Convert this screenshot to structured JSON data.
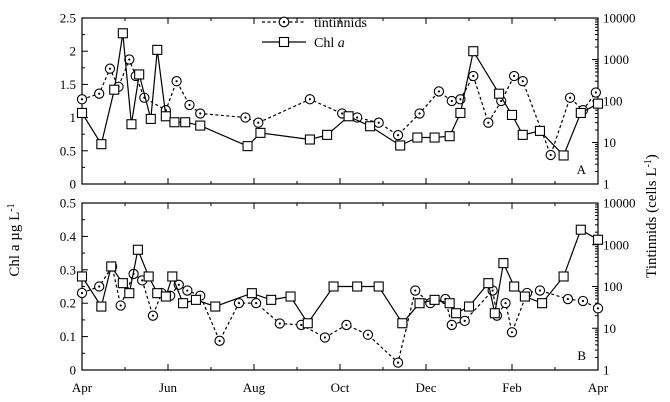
{
  "chart_data": {
    "type": "line",
    "y_left_label_main": "Chl a µg L",
    "y_left_label_sup": "-1",
    "y_right_label_main": "Tintinnids (cells L",
    "y_right_label_sup": "-1",
    "y_right_label_close": ")",
    "x_ticks": [
      {
        "label": "Apr",
        "x": 0
      },
      {
        "label": "Jun",
        "x": 2
      },
      {
        "label": "Aug",
        "x": 4
      },
      {
        "label": "Oct",
        "x": 6
      },
      {
        "label": "Dec",
        "x": 8
      },
      {
        "label": "Feb",
        "x": 10
      },
      {
        "label": "Apr",
        "x": 12
      }
    ],
    "x_range": [
      0,
      12
    ],
    "legend": {
      "tintinnids": "tintinnids",
      "chl_prefix": "Chl ",
      "chl_italic": "a"
    },
    "panels": [
      {
        "letter": "A",
        "left_range": [
          0,
          2.5
        ],
        "left_ticks": [
          "0",
          "0.5",
          "1",
          "1.5",
          "2",
          "2.5"
        ],
        "left_tick_values": [
          0,
          0.5,
          1,
          1.5,
          2,
          2.5
        ],
        "right_range_log": [
          1,
          10000
        ],
        "right_ticks": [
          "1",
          "10",
          "100",
          "1000",
          "10000"
        ],
        "right_tick_values": [
          1,
          10,
          100,
          1000,
          10000
        ],
        "chl": [
          {
            "x": 0.0,
            "y": 1.07
          },
          {
            "x": 0.45,
            "y": 0.6
          },
          {
            "x": 0.75,
            "y": 1.42
          },
          {
            "x": 0.95,
            "y": 2.27
          },
          {
            "x": 1.15,
            "y": 0.9
          },
          {
            "x": 1.33,
            "y": 1.65
          },
          {
            "x": 1.6,
            "y": 0.98
          },
          {
            "x": 1.75,
            "y": 2.02
          },
          {
            "x": 1.95,
            "y": 1.02
          },
          {
            "x": 2.15,
            "y": 0.93
          },
          {
            "x": 2.4,
            "y": 0.93
          },
          {
            "x": 2.75,
            "y": 0.88
          },
          {
            "x": 3.85,
            "y": 0.57
          },
          {
            "x": 4.15,
            "y": 0.77
          },
          {
            "x": 5.3,
            "y": 0.67
          },
          {
            "x": 5.7,
            "y": 0.74
          },
          {
            "x": 6.2,
            "y": 1.02
          },
          {
            "x": 6.7,
            "y": 0.87
          },
          {
            "x": 7.4,
            "y": 0.58
          },
          {
            "x": 7.8,
            "y": 0.7
          },
          {
            "x": 8.2,
            "y": 0.7
          },
          {
            "x": 8.55,
            "y": 0.72
          },
          {
            "x": 8.8,
            "y": 1.07
          },
          {
            "x": 9.1,
            "y": 2.0
          },
          {
            "x": 9.7,
            "y": 1.36
          },
          {
            "x": 10.0,
            "y": 1.04
          },
          {
            "x": 10.25,
            "y": 0.74
          },
          {
            "x": 10.65,
            "y": 0.8
          },
          {
            "x": 11.2,
            "y": 0.43
          },
          {
            "x": 11.6,
            "y": 1.07
          },
          {
            "x": 12.0,
            "y": 1.21
          }
        ],
        "tintinnids": [
          {
            "x": 0.0,
            "y": 110
          },
          {
            "x": 0.4,
            "y": 150
          },
          {
            "x": 0.65,
            "y": 600
          },
          {
            "x": 0.85,
            "y": 220
          },
          {
            "x": 1.1,
            "y": 1000
          },
          {
            "x": 1.25,
            "y": 400
          },
          {
            "x": 1.45,
            "y": 120
          },
          {
            "x": 1.95,
            "y": 60
          },
          {
            "x": 2.2,
            "y": 300
          },
          {
            "x": 2.5,
            "y": 80
          },
          {
            "x": 2.75,
            "y": 50
          },
          {
            "x": 3.8,
            "y": 40
          },
          {
            "x": 4.1,
            "y": 30
          },
          {
            "x": 5.3,
            "y": 110
          },
          {
            "x": 6.05,
            "y": 50
          },
          {
            "x": 6.4,
            "y": 40
          },
          {
            "x": 6.9,
            "y": 30
          },
          {
            "x": 7.35,
            "y": 15
          },
          {
            "x": 7.85,
            "y": 50
          },
          {
            "x": 8.3,
            "y": 170
          },
          {
            "x": 8.6,
            "y": 100
          },
          {
            "x": 8.8,
            "y": 110
          },
          {
            "x": 9.1,
            "y": 400
          },
          {
            "x": 9.45,
            "y": 30
          },
          {
            "x": 9.75,
            "y": 100
          },
          {
            "x": 10.05,
            "y": 400
          },
          {
            "x": 10.25,
            "y": 300
          },
          {
            "x": 10.9,
            "y": 5
          },
          {
            "x": 11.35,
            "y": 120
          },
          {
            "x": 11.65,
            "y": 60
          },
          {
            "x": 11.95,
            "y": 160
          }
        ]
      },
      {
        "letter": "B",
        "left_range": [
          0,
          0.5
        ],
        "left_ticks": [
          "0",
          "0.1",
          "0.2",
          "0.3",
          "0.4",
          "0.5"
        ],
        "left_tick_values": [
          0,
          0.1,
          0.2,
          0.3,
          0.4,
          0.5
        ],
        "right_range_log": [
          1,
          10000
        ],
        "right_ticks": [
          "1",
          "10",
          "100",
          "1000",
          "10000"
        ],
        "right_tick_values": [
          1,
          10,
          100,
          1000,
          10000
        ],
        "chl": [
          {
            "x": 0.0,
            "y": 0.28
          },
          {
            "x": 0.45,
            "y": 0.19
          },
          {
            "x": 0.68,
            "y": 0.31
          },
          {
            "x": 0.95,
            "y": 0.26
          },
          {
            "x": 1.1,
            "y": 0.23
          },
          {
            "x": 1.3,
            "y": 0.36
          },
          {
            "x": 1.55,
            "y": 0.28
          },
          {
            "x": 1.75,
            "y": 0.23
          },
          {
            "x": 1.95,
            "y": 0.22
          },
          {
            "x": 2.1,
            "y": 0.28
          },
          {
            "x": 2.35,
            "y": 0.2
          },
          {
            "x": 2.65,
            "y": 0.21
          },
          {
            "x": 3.1,
            "y": 0.19
          },
          {
            "x": 3.95,
            "y": 0.23
          },
          {
            "x": 4.4,
            "y": 0.21
          },
          {
            "x": 4.85,
            "y": 0.22
          },
          {
            "x": 5.25,
            "y": 0.14
          },
          {
            "x": 5.85,
            "y": 0.25
          },
          {
            "x": 6.4,
            "y": 0.25
          },
          {
            "x": 6.9,
            "y": 0.25
          },
          {
            "x": 7.45,
            "y": 0.14
          },
          {
            "x": 7.85,
            "y": 0.2
          },
          {
            "x": 8.2,
            "y": 0.21
          },
          {
            "x": 8.55,
            "y": 0.2
          },
          {
            "x": 8.7,
            "y": 0.17
          },
          {
            "x": 9.0,
            "y": 0.19
          },
          {
            "x": 9.45,
            "y": 0.26
          },
          {
            "x": 9.6,
            "y": 0.17
          },
          {
            "x": 9.8,
            "y": 0.32
          },
          {
            "x": 10.05,
            "y": 0.25
          },
          {
            "x": 10.3,
            "y": 0.22
          },
          {
            "x": 10.7,
            "y": 0.2
          },
          {
            "x": 11.2,
            "y": 0.28
          },
          {
            "x": 11.6,
            "y": 0.42
          },
          {
            "x": 12.0,
            "y": 0.39
          }
        ],
        "tintinnids": [
          {
            "x": 0.0,
            "y": 70
          },
          {
            "x": 0.4,
            "y": 100
          },
          {
            "x": 0.7,
            "y": 300
          },
          {
            "x": 0.9,
            "y": 35
          },
          {
            "x": 1.2,
            "y": 200
          },
          {
            "x": 1.4,
            "y": 140
          },
          {
            "x": 1.65,
            "y": 20
          },
          {
            "x": 1.85,
            "y": 70
          },
          {
            "x": 2.05,
            "y": 60
          },
          {
            "x": 2.25,
            "y": 110
          },
          {
            "x": 2.45,
            "y": 80
          },
          {
            "x": 2.75,
            "y": 60
          },
          {
            "x": 3.2,
            "y": 5
          },
          {
            "x": 3.65,
            "y": 40
          },
          {
            "x": 4.05,
            "y": 40
          },
          {
            "x": 4.6,
            "y": 13
          },
          {
            "x": 5.1,
            "y": 12
          },
          {
            "x": 5.65,
            "y": 6
          },
          {
            "x": 6.15,
            "y": 12
          },
          {
            "x": 6.65,
            "y": 7
          },
          {
            "x": 7.35,
            "y": 1.5
          },
          {
            "x": 7.75,
            "y": 80
          },
          {
            "x": 8.1,
            "y": 40
          },
          {
            "x": 8.45,
            "y": 50
          },
          {
            "x": 8.6,
            "y": 12
          },
          {
            "x": 8.9,
            "y": 15
          },
          {
            "x": 9.55,
            "y": 80
          },
          {
            "x": 9.65,
            "y": 20
          },
          {
            "x": 9.85,
            "y": 40
          },
          {
            "x": 10.0,
            "y": 8
          },
          {
            "x": 10.35,
            "y": 70
          },
          {
            "x": 10.65,
            "y": 80
          },
          {
            "x": 11.3,
            "y": 50
          },
          {
            "x": 11.65,
            "y": 45
          },
          {
            "x": 12.0,
            "y": 30
          }
        ]
      }
    ]
  }
}
